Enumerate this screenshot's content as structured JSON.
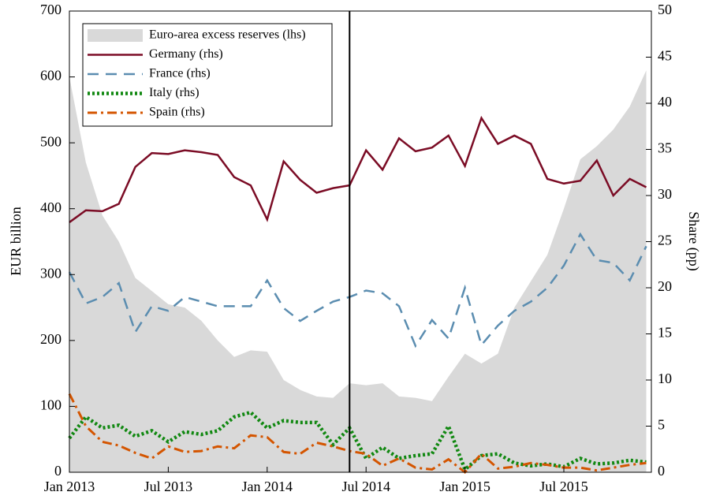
{
  "chart_data": {
    "type": "line",
    "categories": [
      "Jan 2013",
      null,
      null,
      null,
      null,
      null,
      "Jul 2013",
      null,
      null,
      null,
      null,
      null,
      "Jan 2014",
      null,
      null,
      null,
      null,
      null,
      "Jul 2014",
      null,
      null,
      null,
      null,
      null,
      "Jan 2015",
      null,
      null,
      null,
      null,
      null,
      "Jul 2015",
      null,
      null,
      null,
      null,
      null
    ],
    "ylabel": "EUR billion",
    "y2label": "Share (pp)",
    "ylim": [
      0,
      700
    ],
    "yticks": [
      0,
      100,
      200,
      300,
      400,
      500,
      600,
      700
    ],
    "y2lim": [
      0,
      50
    ],
    "y2ticks": [
      0,
      5,
      10,
      15,
      20,
      25,
      30,
      35,
      40,
      45,
      50
    ],
    "grid": false,
    "legend": "upper left",
    "series": [
      {
        "name": "Euro-area excess reserves (lhs)",
        "color": "#d9d9d9",
        "style": "area",
        "axis": "y",
        "values": [
          600,
          470,
          390,
          350,
          295,
          275,
          255,
          250,
          230,
          200,
          175,
          185,
          183,
          140,
          125,
          115,
          113,
          135,
          132,
          135,
          115,
          113,
          108,
          145,
          180,
          165,
          180,
          250,
          290,
          330,
          400,
          475,
          495,
          520,
          555,
          610
        ]
      },
      {
        "name": "Germany (rhs)",
        "color": "#7b0c25",
        "style": "solid",
        "axis": "y2",
        "values": [
          27.1,
          28.4,
          28.3,
          29.1,
          33.1,
          34.6,
          34.5,
          34.9,
          34.7,
          34.4,
          32.0,
          31.1,
          27.4,
          33.7,
          31.7,
          30.3,
          30.8,
          31.1,
          34.9,
          32.8,
          36.2,
          34.8,
          35.2,
          36.5,
          33.2,
          38.4,
          35.6,
          36.5,
          35.6,
          31.8,
          31.3,
          31.6,
          33.8,
          30.0,
          31.8,
          30.9
        ]
      },
      {
        "name": "France (rhs)",
        "color": "#5b8db0",
        "style": "dashed",
        "axis": "y2",
        "values": [
          21.7,
          18.3,
          19.0,
          20.5,
          15.2,
          18.0,
          17.5,
          19.0,
          18.5,
          18.0,
          18.0,
          18.0,
          20.8,
          17.8,
          16.4,
          17.5,
          18.5,
          19.0,
          19.7,
          19.4,
          18.0,
          13.7,
          16.5,
          14.5,
          20.0,
          13.8,
          15.9,
          17.5,
          18.5,
          20.0,
          22.4,
          25.8,
          23.0,
          22.7,
          20.8,
          24.5
        ]
      },
      {
        "name": "Italy (rhs)",
        "color": "#118811",
        "style": "dotted",
        "axis": "y2",
        "values": [
          3.7,
          6.0,
          4.8,
          5.1,
          3.9,
          4.5,
          3.3,
          4.4,
          4.1,
          4.5,
          6.0,
          6.5,
          4.8,
          5.6,
          5.4,
          5.4,
          3.0,
          4.8,
          1.5,
          2.7,
          1.5,
          1.8,
          2.0,
          5.0,
          0.3,
          1.8,
          2.0,
          1.0,
          0.7,
          0.9,
          0.6,
          1.5,
          0.9,
          1.0,
          1.3,
          1.1
        ]
      },
      {
        "name": "Spain (rhs)",
        "color": "#d45500",
        "style": "dashdot",
        "axis": "y2",
        "values": [
          8.5,
          5.0,
          3.3,
          2.9,
          2.1,
          1.5,
          2.8,
          2.2,
          2.3,
          2.8,
          2.6,
          4.0,
          3.8,
          2.2,
          2.0,
          3.2,
          2.8,
          2.3,
          2.0,
          0.7,
          1.5,
          0.5,
          0.3,
          1.4,
          0.0,
          2.0,
          0.4,
          0.6,
          1.0,
          0.8,
          0.5,
          0.5,
          0.2,
          0.5,
          0.8,
          1.0
        ]
      }
    ]
  }
}
